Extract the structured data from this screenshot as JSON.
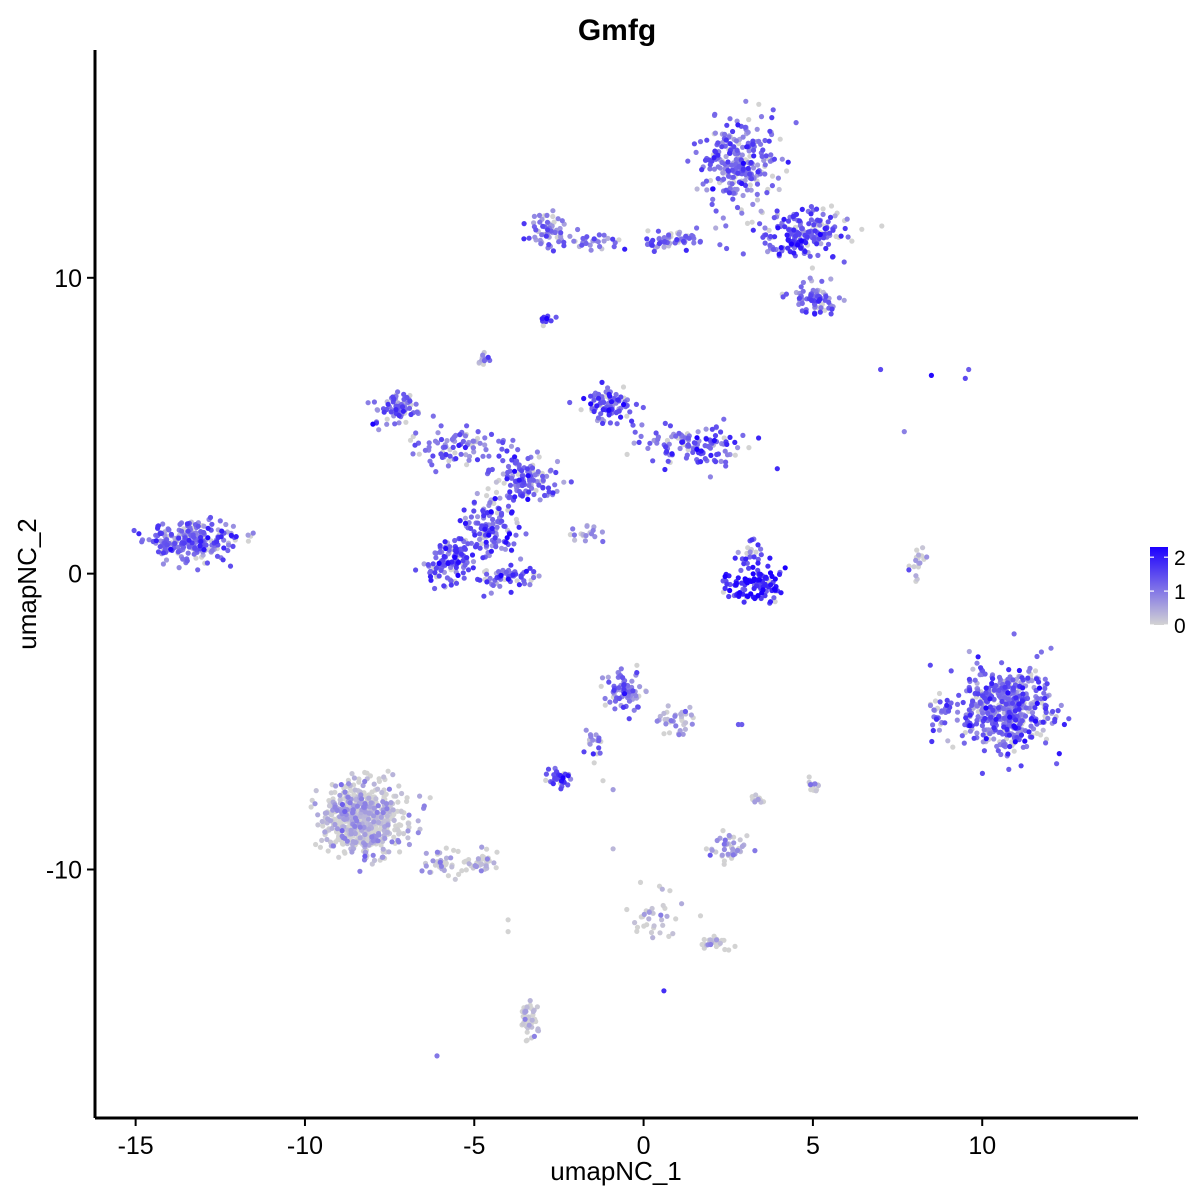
{
  "chart_data": {
    "type": "scatter",
    "title": "Gmfg",
    "xlabel": "umapNC_1",
    "ylabel": "umapNC_2",
    "xlim": [
      -16.2,
      14.6
    ],
    "ylim": [
      -18.4,
      17.7
    ],
    "x_ticks": [
      {
        "value": -15,
        "label": "-15"
      },
      {
        "value": -10,
        "label": "-10"
      },
      {
        "value": -5,
        "label": "-5"
      },
      {
        "value": 0,
        "label": "0"
      },
      {
        "value": 5,
        "label": "5"
      },
      {
        "value": 10,
        "label": "10"
      }
    ],
    "y_ticks": [
      {
        "value": -10,
        "label": "-10"
      },
      {
        "value": 0,
        "label": "0"
      },
      {
        "value": 10,
        "label": "10"
      }
    ],
    "grid": false,
    "legend": {
      "placement": "right",
      "type": "continuous",
      "min": 0,
      "max": 2.3,
      "low_color": "#d3d3d3",
      "high_color": "#1c00ff",
      "ticks": [
        {
          "value": 0,
          "label": "0"
        },
        {
          "value": 1,
          "label": "1"
        },
        {
          "value": 2,
          "label": "2"
        }
      ]
    },
    "point_color_low": "#d3d3d3",
    "point_color_high": "#1c00ff",
    "clusters": [
      {
        "center": [
          2.8,
          13.9
        ],
        "spread": [
          1.1,
          1.2
        ],
        "n": 260,
        "expression": 1.1
      },
      {
        "center": [
          4.6,
          11.5
        ],
        "spread": [
          1.3,
          0.8
        ],
        "n": 190,
        "expression": 1.3
      },
      {
        "center": [
          5.1,
          9.3
        ],
        "spread": [
          0.7,
          0.5
        ],
        "n": 70,
        "expression": 1.1
      },
      {
        "center": [
          0.9,
          11.3
        ],
        "spread": [
          0.9,
          0.4
        ],
        "n": 60,
        "expression": 1.2
      },
      {
        "center": [
          -1.8,
          11.2
        ],
        "spread": [
          1.5,
          0.3
        ],
        "n": 40,
        "expression": 1.0
      },
      {
        "center": [
          -2.8,
          11.6
        ],
        "spread": [
          0.5,
          0.5
        ],
        "n": 50,
        "expression": 0.9
      },
      {
        "center": [
          -2.9,
          8.6
        ],
        "spread": [
          0.15,
          0.15
        ],
        "n": 14,
        "expression": 1.6
      },
      {
        "center": [
          -4.7,
          7.2
        ],
        "spread": [
          0.2,
          0.2
        ],
        "n": 14,
        "expression": 0.4
      },
      {
        "center": [
          -7.3,
          5.6
        ],
        "spread": [
          0.6,
          0.5
        ],
        "n": 70,
        "expression": 1.2
      },
      {
        "center": [
          -5.5,
          4.3
        ],
        "spread": [
          1.3,
          0.6
        ],
        "n": 90,
        "expression": 1.1
      },
      {
        "center": [
          -1.0,
          5.7
        ],
        "spread": [
          0.7,
          0.6
        ],
        "n": 90,
        "expression": 1.3
      },
      {
        "center": [
          1.5,
          4.3
        ],
        "spread": [
          1.4,
          0.6
        ],
        "n": 120,
        "expression": 1.3
      },
      {
        "center": [
          -3.5,
          3.2
        ],
        "spread": [
          1.0,
          0.7
        ],
        "n": 120,
        "expression": 1.2
      },
      {
        "center": [
          -4.5,
          1.5
        ],
        "spread": [
          0.8,
          0.8
        ],
        "n": 130,
        "expression": 1.2
      },
      {
        "center": [
          -5.7,
          0.4
        ],
        "spread": [
          0.7,
          0.7
        ],
        "n": 110,
        "expression": 1.3
      },
      {
        "center": [
          -4.1,
          -0.1
        ],
        "spread": [
          0.8,
          0.4
        ],
        "n": 60,
        "expression": 1.2
      },
      {
        "center": [
          -1.9,
          1.3
        ],
        "spread": [
          0.7,
          0.3
        ],
        "n": 18,
        "expression": 0.6
      },
      {
        "center": [
          -13.3,
          1.1
        ],
        "spread": [
          1.2,
          0.6
        ],
        "n": 230,
        "expression": 1.1
      },
      {
        "center": [
          3.3,
          -0.4
        ],
        "spread": [
          0.8,
          0.5
        ],
        "n": 110,
        "expression": 1.9
      },
      {
        "center": [
          3.1,
          0.6
        ],
        "spread": [
          0.4,
          0.5
        ],
        "n": 25,
        "expression": 1.2
      },
      {
        "center": [
          8.1,
          0.4
        ],
        "spread": [
          0.25,
          0.5
        ],
        "n": 18,
        "expression": 0.3
      },
      {
        "center": [
          10.7,
          -4.6
        ],
        "spread": [
          1.2,
          1.3
        ],
        "n": 520,
        "expression": 1.1
      },
      {
        "center": [
          8.8,
          -4.8
        ],
        "spread": [
          0.3,
          0.5
        ],
        "n": 25,
        "expression": 1.1
      },
      {
        "center": [
          -0.6,
          -3.9
        ],
        "spread": [
          0.5,
          0.6
        ],
        "n": 80,
        "expression": 1.0
      },
      {
        "center": [
          1.0,
          -5.0
        ],
        "spread": [
          0.5,
          0.5
        ],
        "n": 35,
        "expression": 0.3
      },
      {
        "center": [
          -1.5,
          -5.7
        ],
        "spread": [
          0.3,
          0.7
        ],
        "n": 18,
        "expression": 1.0
      },
      {
        "center": [
          -2.5,
          -6.9
        ],
        "spread": [
          0.3,
          0.25
        ],
        "n": 40,
        "expression": 1.3
      },
      {
        "center": [
          -8.3,
          -8.3
        ],
        "spread": [
          1.1,
          1.1
        ],
        "n": 620,
        "expression": 0.03
      },
      {
        "center": [
          -5.4,
          -9.8
        ],
        "spread": [
          1.0,
          0.4
        ],
        "n": 70,
        "expression": 0.0
      },
      {
        "center": [
          -3.4,
          -15.1
        ],
        "spread": [
          0.25,
          0.6
        ],
        "n": 45,
        "expression": 0.0
      },
      {
        "center": [
          2.5,
          -9.3
        ],
        "spread": [
          0.5,
          0.4
        ],
        "n": 45,
        "expression": 0.15
      },
      {
        "center": [
          0.3,
          -11.6
        ],
        "spread": [
          0.8,
          1.0
        ],
        "n": 35,
        "expression": 0.0
      },
      {
        "center": [
          2.1,
          -12.5
        ],
        "spread": [
          0.4,
          0.2
        ],
        "n": 25,
        "expression": 0.0
      },
      {
        "center": [
          5.0,
          -7.2
        ],
        "spread": [
          0.2,
          0.3
        ],
        "n": 14,
        "expression": 0.15
      },
      {
        "center": [
          3.4,
          -7.6
        ],
        "spread": [
          0.2,
          0.2
        ],
        "n": 10,
        "expression": 0.1
      }
    ],
    "sparse_points": [
      {
        "x": 7.0,
        "y": 6.9,
        "expression": 1.5
      },
      {
        "x": 8.5,
        "y": 6.7,
        "expression": 2.2
      },
      {
        "x": 9.5,
        "y": 6.6,
        "expression": 1.5
      },
      {
        "x": 9.6,
        "y": 6.9,
        "expression": 1.3
      },
      {
        "x": 7.7,
        "y": 4.8,
        "expression": 0.9
      },
      {
        "x": 2.8,
        "y": -5.1,
        "expression": 1.3
      },
      {
        "x": 2.9,
        "y": -5.1,
        "expression": 1.3
      },
      {
        "x": -1.2,
        "y": -7.0,
        "expression": 0.0
      },
      {
        "x": -0.9,
        "y": -7.3,
        "expression": 0.6
      },
      {
        "x": 0.6,
        "y": -14.1,
        "expression": 1.8
      },
      {
        "x": -6.1,
        "y": -16.3,
        "expression": 1.0
      },
      {
        "x": -4.0,
        "y": -11.7,
        "expression": 0.0
      },
      {
        "x": -4.0,
        "y": -12.1,
        "expression": 0.0
      },
      {
        "x": -0.9,
        "y": -9.3,
        "expression": 0.3
      },
      {
        "x": 2.7,
        "y": -12.6,
        "expression": 0.0
      }
    ]
  }
}
